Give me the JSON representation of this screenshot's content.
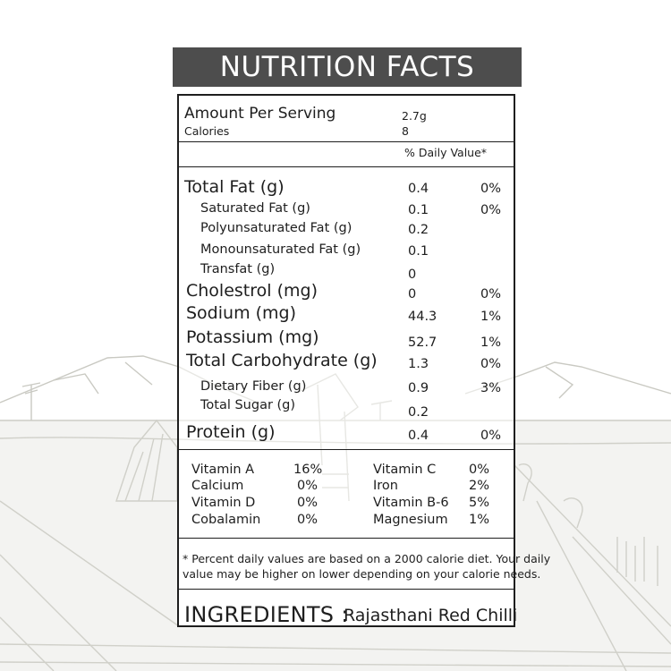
{
  "title": "NUTRITION FACTS",
  "serving": {
    "amount_label": "Amount Per Serving",
    "amount_value": "2.7g",
    "calories_label": "Calories",
    "calories_value": "8"
  },
  "daily_value_header": "% Daily Value*",
  "nutrients": [
    {
      "label": "Total Fat (g)",
      "amount": "0.4",
      "dv": "0%"
    },
    {
      "label": "Saturated Fat (g)",
      "amount": "0.1",
      "dv": "0%"
    },
    {
      "label": "Polyunsaturated Fat (g)",
      "amount": "0.2",
      "dv": ""
    },
    {
      "label": "Monounsaturated Fat (g)",
      "amount": "0.1",
      "dv": ""
    },
    {
      "label": "Transfat (g)",
      "amount": "0",
      "dv": ""
    },
    {
      "label": "Cholestrol (mg)",
      "amount": "0",
      "dv": "0%"
    },
    {
      "label": "Sodium (mg)",
      "amount": "44.3",
      "dv": "1%"
    },
    {
      "label": "Potassium (mg)",
      "amount": "52.7",
      "dv": "1%"
    },
    {
      "label": "Total Carbohydrate (g)",
      "amount": "1.3",
      "dv": "0%"
    },
    {
      "label": "Dietary Fiber (g)",
      "amount": "0.9",
      "dv": "3%"
    },
    {
      "label": "Total Sugar (g)",
      "amount": "0.2",
      "dv": ""
    },
    {
      "label": "Protein (g)",
      "amount": "0.4",
      "dv": "0%"
    }
  ],
  "vitamins_left": [
    {
      "name": "Vitamin A",
      "dv": "16%"
    },
    {
      "name": "Calcium",
      "dv": "0%"
    },
    {
      "name": "Vitamin D",
      "dv": "0%"
    },
    {
      "name": "Cobalamin",
      "dv": "0%"
    }
  ],
  "vitamins_right": [
    {
      "name": "Vitamin C",
      "dv": "0%"
    },
    {
      "name": "Iron",
      "dv": "2%"
    },
    {
      "name": "Vitamin B-6",
      "dv": "5%"
    },
    {
      "name": "Magnesium",
      "dv": "1%"
    }
  ],
  "footnote_line1": "* Percent daily values are based on a 2000 calorie diet. Your daily",
  "footnote_line2": "value may be higher on lower depending on your calorie needs.",
  "ingredients_label": "INGREDIENTS :",
  "ingredients_value": "Rajasthani Red Chilli",
  "colors": {
    "banner": "#4d4d4d",
    "text": "#1e1e1e",
    "sketch": "#c9c9c2"
  }
}
